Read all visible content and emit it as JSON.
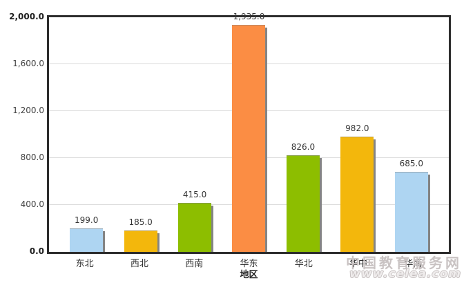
{
  "chart_data": {
    "type": "bar",
    "categories": [
      "东北",
      "西北",
      "西南",
      "华东",
      "华北",
      "华中",
      "华南"
    ],
    "values": [
      199.0,
      185.0,
      415.0,
      1935.0,
      826.0,
      982.0,
      685.0
    ],
    "value_labels": [
      "199.0",
      "185.0",
      "415.0",
      "1,935.0",
      "826.0",
      "982.0",
      "685.0"
    ],
    "bar_colors": [
      "#AED5F2",
      "#F3B70C",
      "#8DBE00",
      "#FB8D44",
      "#8DBE00",
      "#F3B70C",
      "#AED5F2"
    ],
    "title": "",
    "xlabel": "地区",
    "ylabel": "",
    "ylim": [
      0,
      2000
    ],
    "y_ticks": [
      {
        "label": "0.0",
        "value": 0,
        "bold": true
      },
      {
        "label": "400.0",
        "value": 400,
        "bold": false
      },
      {
        "label": "800.0",
        "value": 800,
        "bold": false
      },
      {
        "label": "1,200.0",
        "value": 1200,
        "bold": false
      },
      {
        "label": "1,600.0",
        "value": 1600,
        "bold": false
      },
      {
        "label": "2,000.0",
        "value": 2000,
        "bold": true
      }
    ],
    "grid": true,
    "legend": "none"
  },
  "watermark": {
    "line1": "中国教育服务网",
    "line2": "www.celea.com"
  },
  "colors": {
    "plot_border": "#2d2d2d",
    "gridline": "#dcdcdc",
    "bar_shadow": "#848484",
    "value_text": "#363636",
    "watermark_text": "#c9c3c3"
  }
}
